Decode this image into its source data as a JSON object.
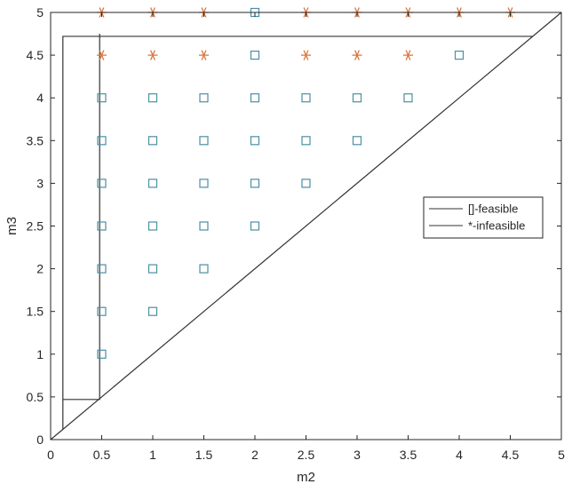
{
  "chart_data": {
    "type": "scatter",
    "title": "",
    "xlabel": "m2",
    "ylabel": "m3",
    "xlim": [
      0,
      5
    ],
    "ylim": [
      0,
      5
    ],
    "xticks": [
      "0",
      "0.5",
      "1",
      "1.5",
      "2",
      "2.5",
      "3",
      "3.5",
      "4",
      "4.5",
      "5"
    ],
    "yticks": [
      "0",
      "0.5",
      "1",
      "1.5",
      "2",
      "2.5",
      "3",
      "3.5",
      "4",
      "4.5",
      "5"
    ],
    "grid": false,
    "legend_position": "right",
    "series": [
      {
        "name": "[]-feasible",
        "marker": "square",
        "color": "#4a8fa3",
        "points": [
          [
            0.5,
            1
          ],
          [
            0.5,
            1.5
          ],
          [
            0.5,
            2
          ],
          [
            0.5,
            2.5
          ],
          [
            0.5,
            3
          ],
          [
            0.5,
            3.5
          ],
          [
            0.5,
            4
          ],
          [
            1,
            1.5
          ],
          [
            1,
            2
          ],
          [
            1,
            2.5
          ],
          [
            1,
            3
          ],
          [
            1,
            3.5
          ],
          [
            1,
            4
          ],
          [
            1.5,
            2
          ],
          [
            1.5,
            2.5
          ],
          [
            1.5,
            3
          ],
          [
            1.5,
            3.5
          ],
          [
            1.5,
            4
          ],
          [
            2,
            2.5
          ],
          [
            2,
            3
          ],
          [
            2,
            3.5
          ],
          [
            2,
            4
          ],
          [
            2,
            4.5
          ],
          [
            2,
            5
          ],
          [
            2.5,
            3
          ],
          [
            2.5,
            3.5
          ],
          [
            2.5,
            4
          ],
          [
            3,
            3.5
          ],
          [
            3,
            4
          ],
          [
            3.5,
            4
          ],
          [
            4,
            4.5
          ]
        ]
      },
      {
        "name": "*-infeasible",
        "marker": "asterisk",
        "color": "#d9783f",
        "points": [
          [
            0.5,
            4.5
          ],
          [
            1,
            4.5
          ],
          [
            1.5,
            4.5
          ],
          [
            2.5,
            4.5
          ],
          [
            3,
            4.5
          ],
          [
            3.5,
            4.5
          ],
          [
            0.5,
            5
          ],
          [
            1,
            5
          ],
          [
            1.5,
            5
          ],
          [
            2.5,
            5
          ],
          [
            3,
            5
          ],
          [
            3.5,
            5
          ],
          [
            4,
            5
          ],
          [
            4.5,
            5
          ]
        ]
      }
    ],
    "boundary_lines": [
      {
        "points": [
          [
            0,
            0
          ],
          [
            5,
            5
          ]
        ]
      },
      {
        "points": [
          [
            0.12,
            0.12
          ],
          [
            0.12,
            4.72
          ],
          [
            4.72,
            4.72
          ]
        ]
      },
      {
        "points": [
          [
            0.12,
            0.47
          ],
          [
            0.48,
            0.47
          ],
          [
            0.48,
            4.75
          ]
        ]
      }
    ],
    "line_color": "#333333"
  }
}
